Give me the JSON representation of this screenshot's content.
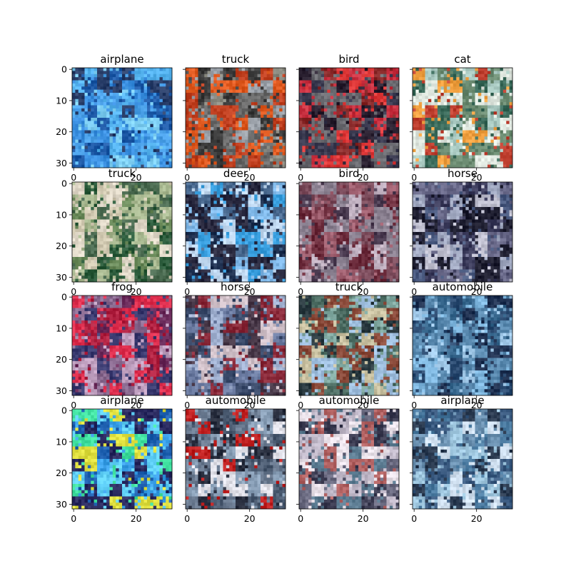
{
  "chart_data": {
    "type": "image-grid",
    "rows": 4,
    "cols": 4,
    "image_size": 32,
    "x_ticks": [
      0,
      20
    ],
    "y_ticks": [
      0,
      10,
      20,
      30
    ],
    "panels": [
      {
        "title": "airplane",
        "palette": [
          "#3a8fe0",
          "#56b4f0",
          "#1e5aa8",
          "#7fd0f5",
          "#2a3f6a",
          "#4aa0e8"
        ]
      },
      {
        "title": "truck",
        "palette": [
          "#6a6a6a",
          "#8a8a80",
          "#3a3a3a",
          "#c04020",
          "#e05a20",
          "#9aa0a8"
        ]
      },
      {
        "title": "bird",
        "palette": [
          "#8a2a2a",
          "#c83040",
          "#3a3a50",
          "#e03a3a",
          "#6a6a70",
          "#2a2030"
        ]
      },
      {
        "title": "cat",
        "palette": [
          "#a8c8c0",
          "#e0e8e0",
          "#6a8a70",
          "#c04030",
          "#3a6a5a",
          "#f0a040"
        ]
      },
      {
        "title": "truck",
        "palette": [
          "#6a8a5a",
          "#a8b890",
          "#2a5a3a",
          "#d0c8b0",
          "#4a6a50",
          "#e0d8c8"
        ]
      },
      {
        "title": "deer",
        "palette": [
          "#4a6a90",
          "#80b8e8",
          "#1e3050",
          "#c0d8f0",
          "#3aa0e0",
          "#2a2a40"
        ]
      },
      {
        "title": "bird",
        "palette": [
          "#7a4a5a",
          "#a06070",
          "#4a3a50",
          "#c0b0c0",
          "#6a2a3a",
          "#8a8090"
        ]
      },
      {
        "title": "horse",
        "palette": [
          "#3a3a5a",
          "#6a6a8a",
          "#1e1e30",
          "#c0c0d0",
          "#4a5a80",
          "#a0a8c0"
        ]
      },
      {
        "title": "frog",
        "palette": [
          "#b02040",
          "#e03050",
          "#8a6a90",
          "#c0a0c0",
          "#6a2a5a",
          "#3a3a70"
        ]
      },
      {
        "title": "horse",
        "palette": [
          "#6a7aa0",
          "#a0b0d0",
          "#4a3a4a",
          "#d0c0c8",
          "#8a2a3a",
          "#3a4a6a"
        ]
      },
      {
        "title": "truck",
        "palette": [
          "#4a6a60",
          "#80a8a0",
          "#2a3a40",
          "#a0c0e0",
          "#8a4a3a",
          "#c8c0a0"
        ]
      },
      {
        "title": "automobile",
        "palette": [
          "#3a6a90",
          "#5a8ab0",
          "#1e3050",
          "#80b8e0",
          "#2a4a70",
          "#a0c8e8"
        ]
      },
      {
        "title": "airplane",
        "palette": [
          "#3aa0e8",
          "#60d0f8",
          "#1e60b0",
          "#40e0a0",
          "#2a2a60",
          "#e0e040"
        ]
      },
      {
        "title": "automobile",
        "palette": [
          "#4a5a70",
          "#8aa0b8",
          "#2a3040",
          "#c02020",
          "#e0e0e8",
          "#6a7a90"
        ]
      },
      {
        "title": "automobile",
        "palette": [
          "#6a6a80",
          "#c0b8c8",
          "#3a3a50",
          "#b06060",
          "#e8e0e8",
          "#5a7a90"
        ]
      },
      {
        "title": "airplane",
        "palette": [
          "#6a90b0",
          "#a0c8e0",
          "#3a5a80",
          "#d0e0f0",
          "#4a7aa0",
          "#2a3a50"
        ]
      }
    ]
  }
}
